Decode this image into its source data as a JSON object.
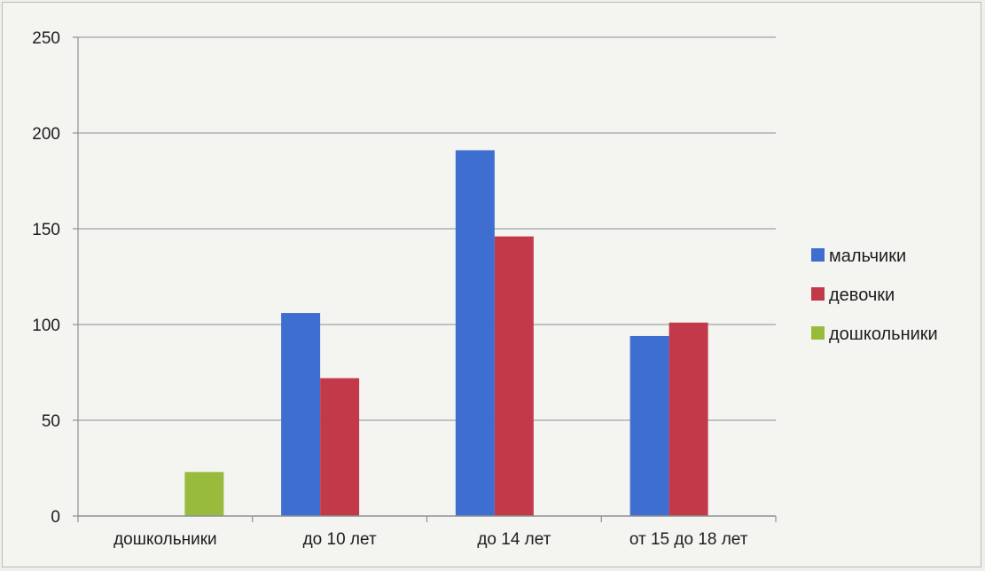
{
  "chart_data": {
    "type": "bar",
    "categories": [
      "дошкольники",
      "до 10 лет",
      "до 14 лет",
      "от 15 до 18 лет"
    ],
    "series": [
      {
        "name": "мальчики",
        "color": "#3f6ed1",
        "values": [
          null,
          106,
          191,
          94
        ]
      },
      {
        "name": "девочки",
        "color": "#c23a49",
        "values": [
          null,
          72,
          146,
          101
        ]
      },
      {
        "name": "дошкольники",
        "color": "#98bb3e",
        "values": [
          23,
          null,
          null,
          null
        ]
      }
    ],
    "ylim": [
      0,
      250
    ],
    "yticks": [
      0,
      50,
      100,
      150,
      200,
      250
    ],
    "grid": true,
    "legend_position": "right",
    "title": "",
    "xlabel": "",
    "ylabel": ""
  }
}
